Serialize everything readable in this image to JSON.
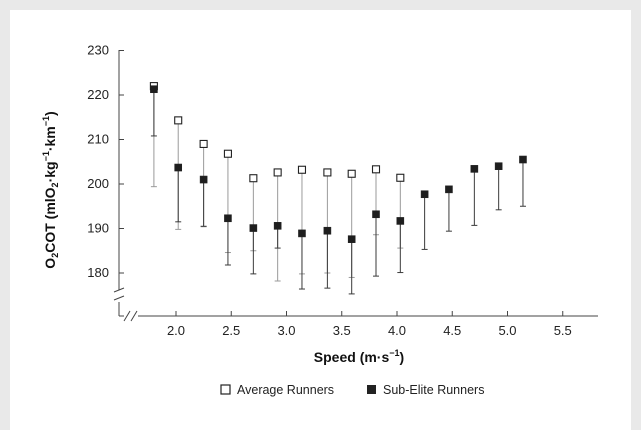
{
  "chart_data": {
    "type": "scatter",
    "title": "",
    "xlabel": "Speed (m·s⁻¹)",
    "ylabel": "O₂COT (mlO₂·kg⁻¹·km⁻¹)",
    "xlim": [
      1.5,
      5.5
    ],
    "ylim": [
      170,
      230
    ],
    "x_ticks": [
      "2.0",
      "2.5",
      "3.0",
      "3.5",
      "4.0",
      "4.5",
      "5.0",
      "5.5"
    ],
    "y_ticks": [
      "180",
      "190",
      "200",
      "210",
      "220",
      "230"
    ],
    "y_axis_break": true,
    "grid": false,
    "legend_position": "bottom",
    "series": [
      {
        "name": "Average Runners",
        "marker": "open-square",
        "color": "#222222",
        "points": [
          {
            "x": 1.8,
            "y": 222.0,
            "err_low": 199.4
          },
          {
            "x": 2.02,
            "y": 214.3,
            "err_low": 189.8
          },
          {
            "x": 2.25,
            "y": 209.0,
            "err_low": 190.4
          },
          {
            "x": 2.47,
            "y": 206.8,
            "err_low": 184.6
          },
          {
            "x": 2.7,
            "y": 201.3,
            "err_low": 185.0
          },
          {
            "x": 2.92,
            "y": 202.6,
            "err_low": 178.2
          },
          {
            "x": 3.14,
            "y": 203.2,
            "err_low": 179.8
          },
          {
            "x": 3.37,
            "y": 202.6,
            "err_low": 180.0
          },
          {
            "x": 3.59,
            "y": 202.3,
            "err_low": 179.0
          },
          {
            "x": 3.81,
            "y": 203.3,
            "err_low": 188.6
          },
          {
            "x": 4.03,
            "y": 201.4,
            "err_low": 185.6
          }
        ]
      },
      {
        "name": "Sub-Elite Runners",
        "marker": "filled-square",
        "color": "#222222",
        "points": [
          {
            "x": 1.8,
            "y": 221.3,
            "err_low": 210.8
          },
          {
            "x": 2.02,
            "y": 203.7,
            "err_low": 191.5
          },
          {
            "x": 2.25,
            "y": 201.0,
            "err_low": 190.5
          },
          {
            "x": 2.47,
            "y": 192.3,
            "err_low": 181.8
          },
          {
            "x": 2.7,
            "y": 190.1,
            "err_low": 179.8
          },
          {
            "x": 2.92,
            "y": 190.6,
            "err_low": 185.6
          },
          {
            "x": 3.14,
            "y": 188.9,
            "err_low": 176.4
          },
          {
            "x": 3.37,
            "y": 189.5,
            "err_low": 176.6
          },
          {
            "x": 3.59,
            "y": 187.6,
            "err_low": 175.3
          },
          {
            "x": 3.81,
            "y": 193.2,
            "err_low": 179.3
          },
          {
            "x": 4.03,
            "y": 191.7,
            "err_low": 180.1
          },
          {
            "x": 4.25,
            "y": 197.7,
            "err_low": 185.3
          },
          {
            "x": 4.47,
            "y": 198.8,
            "err_low": 189.4
          },
          {
            "x": 4.7,
            "y": 203.4,
            "err_low": 190.7
          },
          {
            "x": 4.92,
            "y": 204.0,
            "err_low": 194.2
          },
          {
            "x": 5.14,
            "y": 205.5,
            "err_low": 195.0
          }
        ]
      }
    ]
  }
}
